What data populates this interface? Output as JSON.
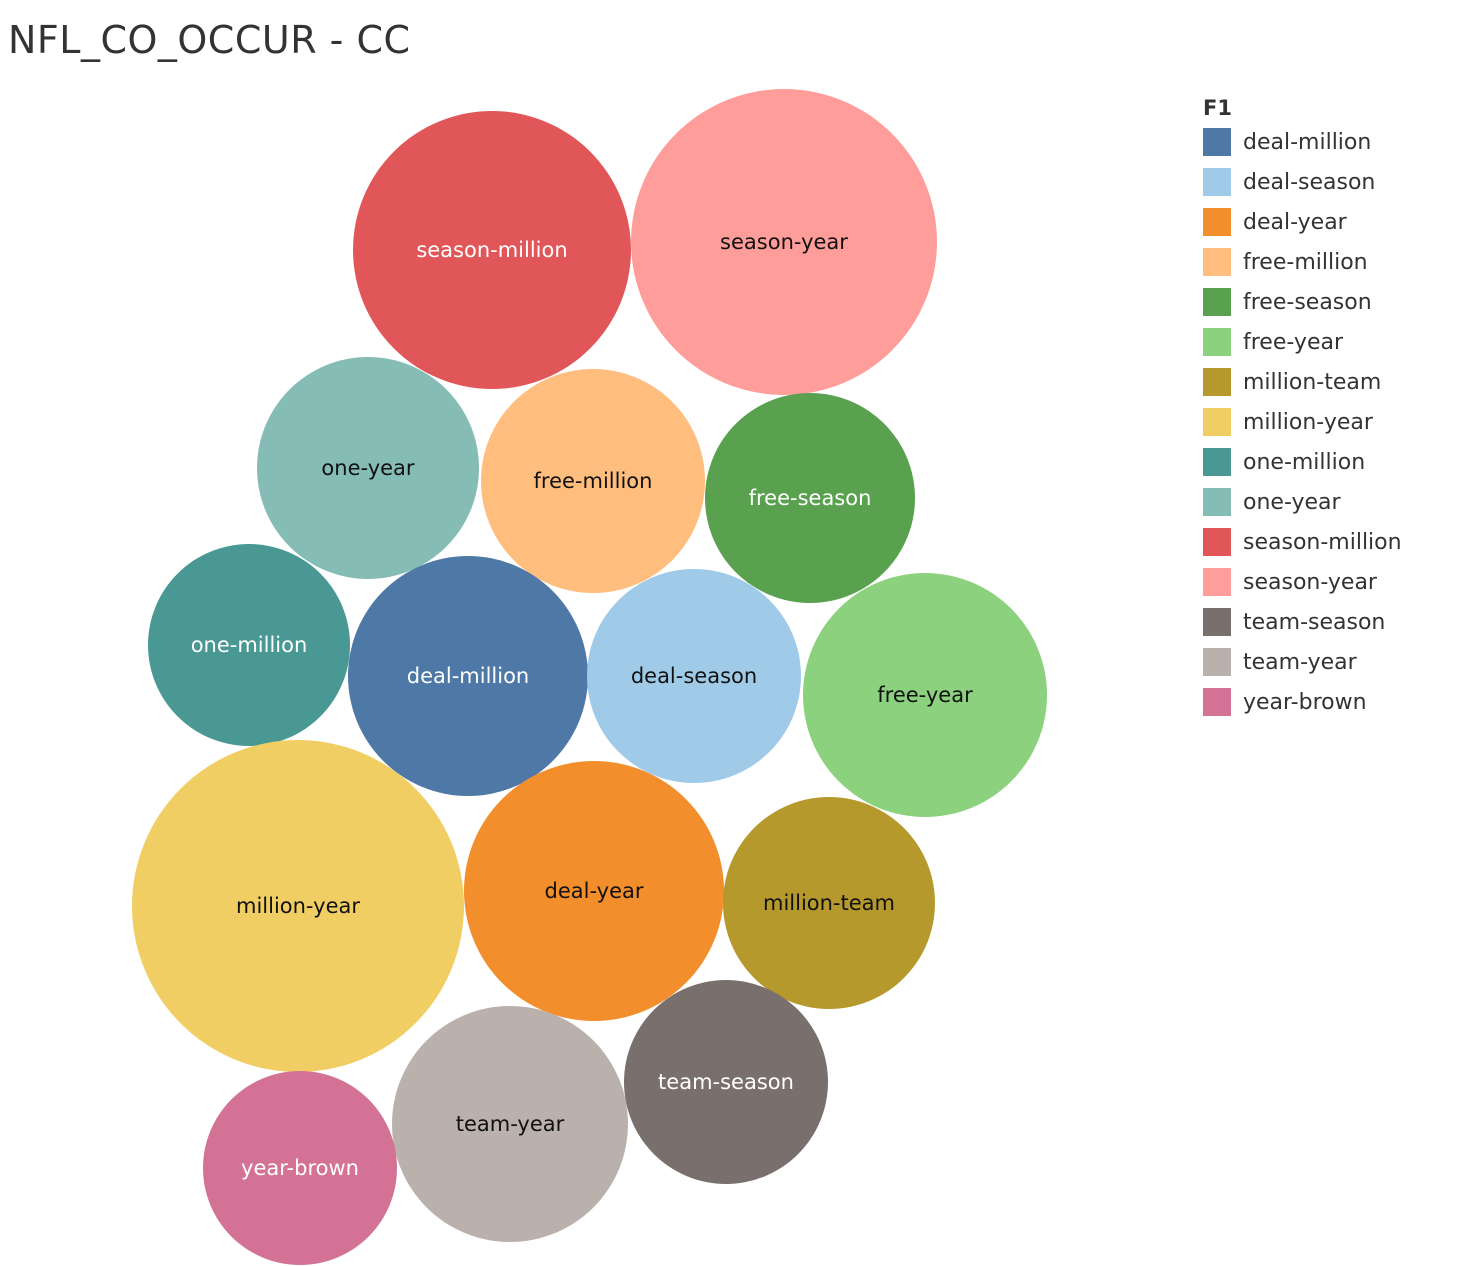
{
  "page": {
    "title": "NFL_CO_OCCUR - CC"
  },
  "legend": {
    "title": "F1",
    "items": [
      {
        "label": "deal-million",
        "color": "#4e79a7"
      },
      {
        "label": "deal-season",
        "color": "#a0cbe8"
      },
      {
        "label": "deal-year",
        "color": "#f28e2b"
      },
      {
        "label": "free-million",
        "color": "#ffbe7d"
      },
      {
        "label": "free-season",
        "color": "#59a14f"
      },
      {
        "label": "free-year",
        "color": "#8cd17d"
      },
      {
        "label": "million-team",
        "color": "#b6992d"
      },
      {
        "label": "million-year",
        "color": "#f1ce63"
      },
      {
        "label": "one-million",
        "color": "#499894"
      },
      {
        "label": "one-year",
        "color": "#86bcb6"
      },
      {
        "label": "season-million",
        "color": "#e15759"
      },
      {
        "label": "season-year",
        "color": "#ff9d9a"
      },
      {
        "label": "team-season",
        "color": "#79706e"
      },
      {
        "label": "team-year",
        "color": "#bab0ac"
      },
      {
        "label": "year-brown",
        "color": "#d37295"
      }
    ]
  },
  "chart_data": {
    "type": "bubble",
    "title": "NFL_CO_OCCUR - CC",
    "legend_title": "F1",
    "legend_position": "right",
    "size_encoding": "relative (no values shown)",
    "bubbles": [
      {
        "label": "season-million",
        "color": "#e15759",
        "label_color": "#ffffff",
        "relative_size": 0.85
      },
      {
        "label": "season-year",
        "color": "#ff9d9a",
        "label_color": "#111111",
        "relative_size": 0.93
      },
      {
        "label": "one-year",
        "color": "#86bcb6",
        "label_color": "#111111",
        "relative_size": 0.68
      },
      {
        "label": "free-million",
        "color": "#ffbe7d",
        "label_color": "#111111",
        "relative_size": 0.68
      },
      {
        "label": "free-season",
        "color": "#59a14f",
        "label_color": "#ffffff",
        "relative_size": 0.64
      },
      {
        "label": "one-million",
        "color": "#499894",
        "label_color": "#ffffff",
        "relative_size": 0.62
      },
      {
        "label": "deal-million",
        "color": "#4e79a7",
        "label_color": "#ffffff",
        "relative_size": 0.73
      },
      {
        "label": "deal-season",
        "color": "#a0cbe8",
        "label_color": "#111111",
        "relative_size": 0.66
      },
      {
        "label": "free-year",
        "color": "#8cd17d",
        "label_color": "#111111",
        "relative_size": 0.75
      },
      {
        "label": "million-year",
        "color": "#f1ce63",
        "label_color": "#111111",
        "relative_size": 1.0
      },
      {
        "label": "deal-year",
        "color": "#f28e2b",
        "label_color": "#111111",
        "relative_size": 0.79
      },
      {
        "label": "million-team",
        "color": "#b6992d",
        "label_color": "#111111",
        "relative_size": 0.64
      },
      {
        "label": "team-season",
        "color": "#79706e",
        "label_color": "#ffffff",
        "relative_size": 0.62
      },
      {
        "label": "team-year",
        "color": "#bab0ac",
        "label_color": "#111111",
        "relative_size": 0.72
      },
      {
        "label": "year-brown",
        "color": "#d37295",
        "label_color": "#ffffff",
        "relative_size": 0.59
      }
    ]
  }
}
